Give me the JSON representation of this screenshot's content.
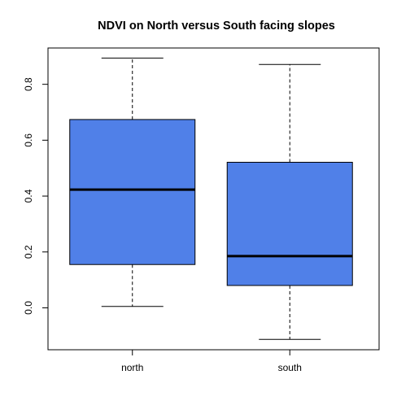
{
  "chart_data": {
    "type": "boxplot",
    "title": "NDVI on North versus South facing slopes",
    "xlabel": "",
    "ylabel": "",
    "categories": [
      "north",
      "south"
    ],
    "boxes": [
      {
        "name": "north",
        "whisker_low": 0.005,
        "q1": 0.155,
        "median": 0.423,
        "q3": 0.674,
        "whisker_high": 0.894
      },
      {
        "name": "south",
        "whisker_low": -0.113,
        "q1": 0.08,
        "median": 0.185,
        "q3": 0.521,
        "whisker_high": 0.871
      }
    ],
    "ylim": [
      -0.15,
      0.93
    ],
    "yticks": [
      0.0,
      0.2,
      0.4,
      0.6,
      0.8
    ],
    "ytick_labels": [
      "0.0",
      "0.2",
      "0.4",
      "0.6",
      "0.8"
    ],
    "grid": false,
    "box_color": "#5080E8"
  }
}
